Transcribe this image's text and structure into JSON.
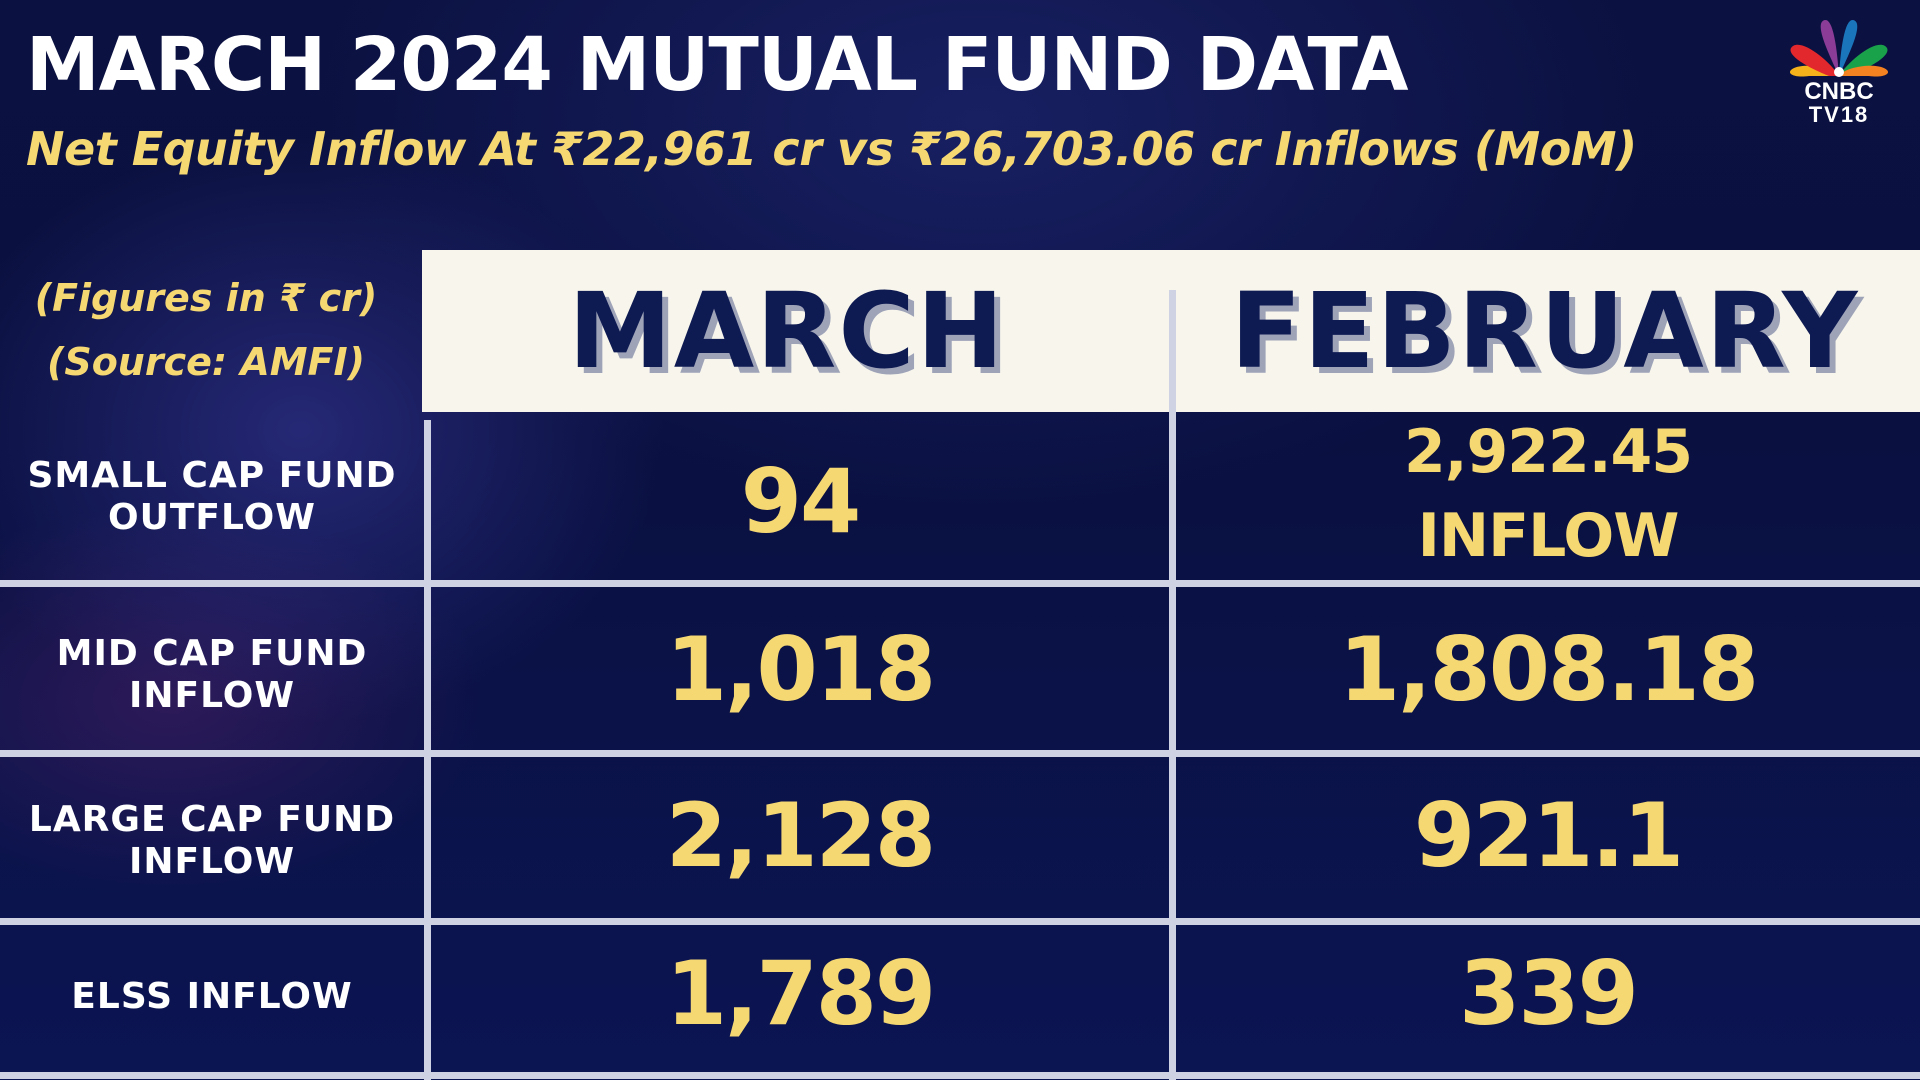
{
  "title": "MARCH 2024 MUTUAL FUND DATA",
  "subtitle": "Net Equity Inflow At ₹22,961 cr vs ₹26,703.06 cr Inflows (MoM)",
  "logo": {
    "icon": "peacock-icon",
    "line1": "CNBC",
    "line2": "TV18"
  },
  "notes": {
    "figures": "(Figures in ₹ cr)",
    "source": "(Source: AMFI)"
  },
  "table": {
    "columns": [
      "MARCH",
      "FEBRUARY"
    ],
    "rows": [
      {
        "label_line1": "SMALL CAP FUND",
        "label_line2": "OUTFLOW",
        "march": "94",
        "february_line1": "2,922.45",
        "february_line2": "INFLOW"
      },
      {
        "label_line1": "MID CAP FUND",
        "label_line2": "INFLOW",
        "march": "1,018",
        "february": "1,808.18"
      },
      {
        "label_line1": "LARGE CAP FUND",
        "label_line2": "INFLOW",
        "march": "2,128",
        "february": "921.1"
      },
      {
        "label_line1": "ELSS INFLOW",
        "march": "1,789",
        "february": "339"
      }
    ]
  },
  "colors": {
    "background": "#0b1140",
    "accent_yellow": "#f6d873",
    "header_band": "#f8f6ec",
    "header_text": "#0e1a52",
    "grid_lines": "#cfd2e2"
  }
}
